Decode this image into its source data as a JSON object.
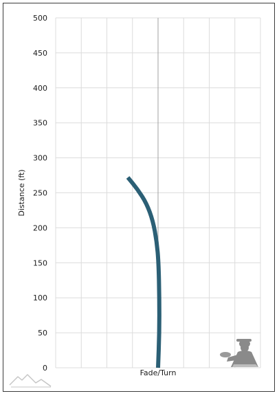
{
  "chart_data": {
    "type": "line",
    "title": "",
    "xlabel": "Fade/Turn",
    "ylabel": "Distance (ft)",
    "xlim": [
      -4,
      4
    ],
    "ylim": [
      0,
      500
    ],
    "yticks": [
      0,
      50,
      100,
      150,
      200,
      250,
      300,
      350,
      400,
      450,
      500
    ],
    "grid": true,
    "legend": "none",
    "series": [
      {
        "color": "#2b5f75",
        "x": [
          0.0,
          0.05,
          0.05,
          0.02,
          -0.05,
          -0.2,
          -0.45,
          -0.8,
          -1.18
        ],
        "y": [
          0,
          50,
          100,
          150,
          180,
          210,
          235,
          255,
          272
        ]
      }
    ]
  },
  "icons": {
    "bottom_left": "mountain-logo-icon",
    "bottom_right": "thrower-silhouette-icon"
  }
}
